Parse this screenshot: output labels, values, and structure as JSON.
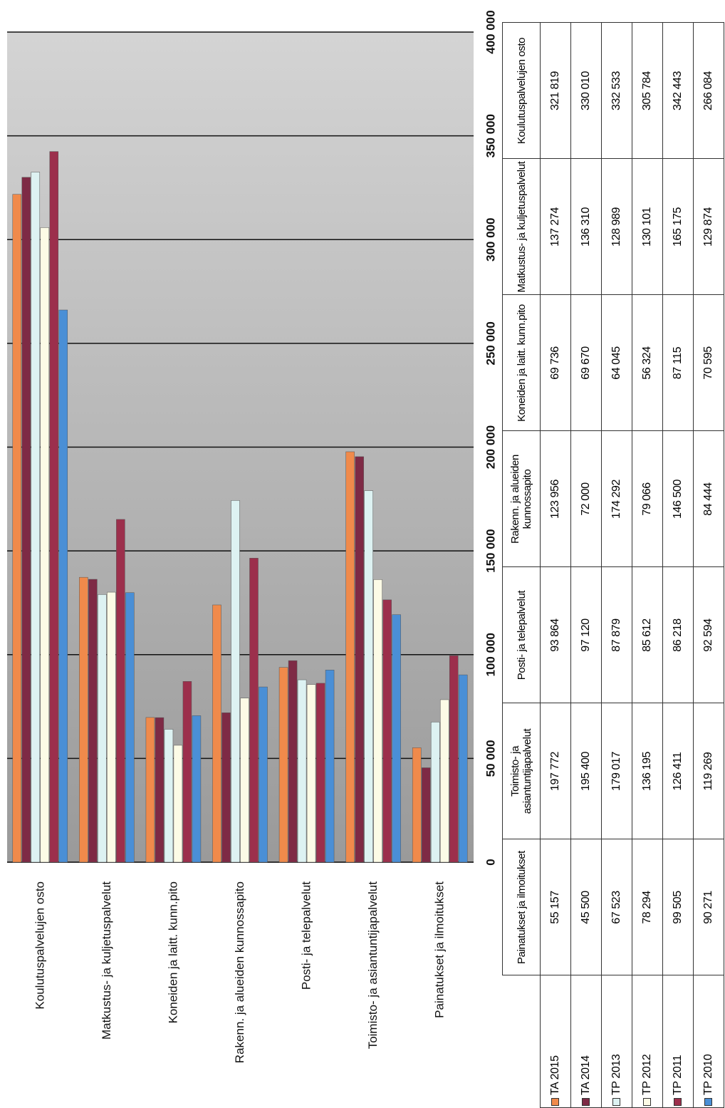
{
  "chart_data": {
    "type": "bar",
    "categories": [
      "Painatukset ja ilmoitukset",
      "Toimisto- ja asiantuntijapalvelut",
      "Posti- ja telepalvelut",
      "Rakenn. ja alueiden kunnossapito",
      "Koneiden ja laitt. kunn.pito",
      "Matkustus- ja kuljetuspalvelut",
      "Koulutuspalvelujen osto"
    ],
    "series": [
      {
        "name": "TA 2015",
        "color": "#f08a4b",
        "values": [
          55157,
          197772,
          93864,
          123956,
          69736,
          137274,
          321819
        ],
        "value_labels": [
          "55 157",
          "197 772",
          "93 864",
          "123 956",
          "69 736",
          "137 274",
          "321 819"
        ]
      },
      {
        "name": "TA 2014",
        "color": "#7e2a45",
        "values": [
          45500,
          195400,
          97120,
          72000,
          69670,
          136310,
          330010
        ],
        "value_labels": [
          "45 500",
          "195 400",
          "97 120",
          "72 000",
          "69 670",
          "136 310",
          "330 010"
        ]
      },
      {
        "name": "TP 2013",
        "color": "#ddf2f2",
        "values": [
          67523,
          179017,
          87879,
          174292,
          64045,
          128989,
          332533
        ],
        "value_labels": [
          "67 523",
          "179 017",
          "87 879",
          "174 292",
          "64 045",
          "128 989",
          "332 533"
        ]
      },
      {
        "name": "TP 2012",
        "color": "#fcfbe6",
        "values": [
          78294,
          136195,
          85612,
          79066,
          56324,
          130101,
          305784
        ],
        "value_labels": [
          "78 294",
          "136 195",
          "85 612",
          "79 066",
          "56 324",
          "130 101",
          "305 784"
        ]
      },
      {
        "name": "TP 2011",
        "color": "#9c2f4c",
        "values": [
          99505,
          126411,
          86218,
          146500,
          87115,
          165175,
          342443
        ],
        "value_labels": [
          "99 505",
          "126 411",
          "86 218",
          "146 500",
          "87 115",
          "165 175",
          "342 443"
        ]
      },
      {
        "name": "TP 2010",
        "color": "#4a8fd6",
        "values": [
          90271,
          119269,
          92594,
          84444,
          70595,
          129874,
          266084
        ],
        "value_labels": [
          "90 271",
          "119 269",
          "92 594",
          "84 444",
          "70 595",
          "129 874",
          "266 084"
        ]
      }
    ],
    "ylim": [
      0,
      400000
    ],
    "yticks": [
      0,
      {
        "value": 50000,
        "label": "50 000"
      },
      {
        "value": 100000,
        "label": "100 000"
      },
      {
        "value": 150000,
        "label": "150 000"
      },
      {
        "value": 200000,
        "label": "200 000"
      },
      {
        "value": 250000,
        "label": "250 000"
      },
      {
        "value": 300000,
        "label": "300 000"
      },
      {
        "value": 350000,
        "label": "350 000"
      },
      {
        "value": 400000,
        "label": "400 000"
      }
    ],
    "grid": true
  }
}
